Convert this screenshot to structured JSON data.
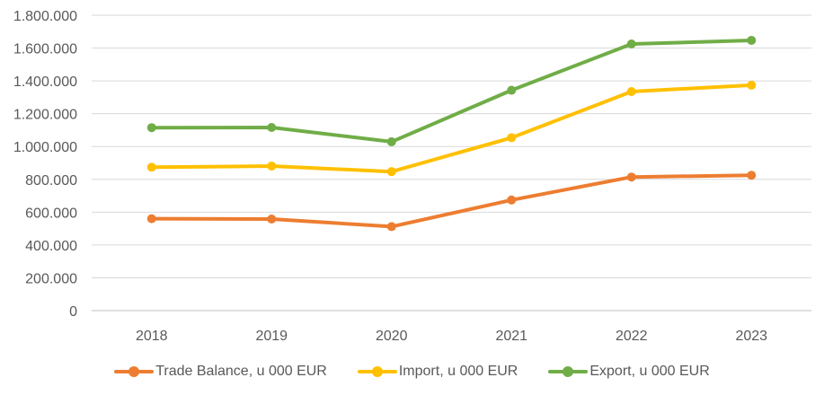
{
  "chart_data": {
    "type": "line",
    "categories": [
      "2018",
      "2019",
      "2020",
      "2021",
      "2022",
      "2023"
    ],
    "series": [
      {
        "name": "Trade Balance, u 000 EUR",
        "color": "#ED7D31",
        "values": [
          560000,
          558000,
          512000,
          674000,
          814000,
          825000
        ]
      },
      {
        "name": "Import, u 000 EUR",
        "color": "#FFC000",
        "values": [
          874000,
          881000,
          847000,
          1054000,
          1335000,
          1374000
        ]
      },
      {
        "name": "Export, u 000 EUR",
        "color": "#70AD47",
        "values": [
          1115000,
          1116000,
          1029000,
          1343000,
          1625000,
          1647000
        ]
      }
    ],
    "ylim": [
      0,
      1800000
    ],
    "yticks": [
      "0",
      "200.000",
      "400.000",
      "600.000",
      "800.000",
      "1.000.000",
      "1.200.000",
      "1.400.000",
      "1.600.000",
      "1.800.000"
    ],
    "grid": true,
    "legend_position": "bottom"
  }
}
